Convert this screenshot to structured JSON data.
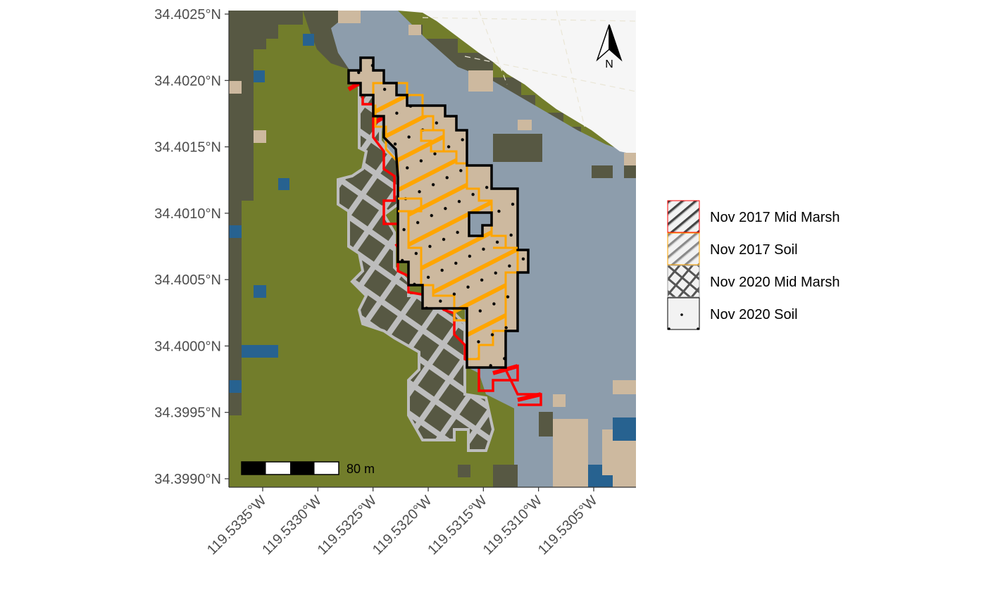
{
  "colors": {
    "saltMarsh": "#727d2b",
    "midMarsh": "#575843",
    "water": "#8d9dac",
    "soil": "#cdb99f",
    "channel": "#276290",
    "ocean": "#f6f6f6",
    "outline2017Mid": "#ff0000",
    "outline2017Soil": "#ffa500",
    "outline2020Mid": "#bdbdbd",
    "outline2020Soil": "#000000"
  },
  "y_axis": {
    "ticks": [
      {
        "value": 34.4025,
        "label": "34.4025°N"
      },
      {
        "value": 34.402,
        "label": "34.4020°N"
      },
      {
        "value": 34.4015,
        "label": "34.4015°N"
      },
      {
        "value": 34.401,
        "label": "34.4010°N"
      },
      {
        "value": 34.4005,
        "label": "34.4005°N"
      },
      {
        "value": 34.4,
        "label": "34.4000°N"
      },
      {
        "value": 34.3995,
        "label": "34.3995°N"
      },
      {
        "value": 34.399,
        "label": "34.3990°N"
      }
    ]
  },
  "x_axis": {
    "ticks": [
      {
        "value": -119.5335,
        "label": "119.5335°W"
      },
      {
        "value": -119.533,
        "label": "119.5330°W"
      },
      {
        "value": -119.5325,
        "label": "119.5325°W"
      },
      {
        "value": -119.532,
        "label": "119.5320°W"
      },
      {
        "value": -119.5315,
        "label": "119.5315°W"
      },
      {
        "value": -119.531,
        "label": "119.5310°W"
      },
      {
        "value": -119.5305,
        "label": "119.5305°W"
      }
    ]
  },
  "scale_bar": {
    "label": "80 m"
  },
  "north_arrow": {
    "label": "N"
  },
  "legend": {
    "items": [
      {
        "label": "Nov 2017 Mid Marsh",
        "icon": "hatch-swatch-red"
      },
      {
        "label": "Nov 2017 Soil",
        "icon": "hatch-swatch-orange"
      },
      {
        "label": "Nov 2020 Mid Marsh",
        "icon": "crosshatch-swatch-grey"
      },
      {
        "label": "Nov 2020 Soil",
        "icon": "dot-swatch-black"
      }
    ]
  }
}
